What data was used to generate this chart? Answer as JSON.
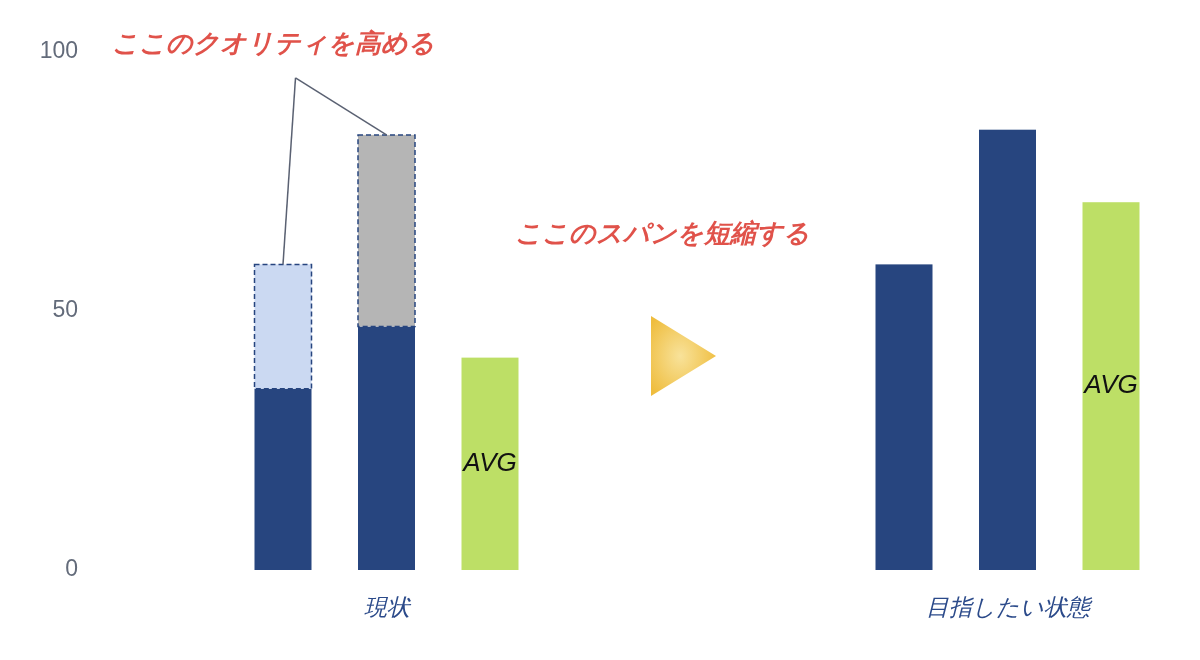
{
  "chart_data": {
    "type": "bar",
    "stacked": true,
    "categories": [
      null,
      "現状",
      null,
      null,
      null,
      null,
      null,
      "目指したい状態",
      null
    ],
    "ylim": [
      0,
      100
    ],
    "yticks": [
      0,
      50,
      100
    ],
    "grid": false,
    "series": [
      {
        "color": "#27457f",
        "values": [
          35,
          47,
          null,
          null,
          null,
          null,
          59,
          85,
          null
        ]
      },
      {
        "colors": [
          "#cbd9f2",
          "#b5b5b5",
          null,
          null,
          null,
          null,
          null,
          null,
          null
        ],
        "values": [
          24,
          37,
          null,
          null,
          null,
          null,
          null,
          null,
          null
        ]
      },
      {
        "color": "#bddf66",
        "values": [
          null,
          null,
          41,
          null,
          null,
          null,
          null,
          null,
          71
        ],
        "value_labels": [
          null,
          null,
          "AVG",
          null,
          null,
          null,
          null,
          null,
          "AVG"
        ]
      }
    ],
    "annotations": [
      {
        "text": "ここのクオリティを高める",
        "x": "現状",
        "y": 84
      },
      "ここのスパンを短縮する"
    ]
  }
}
